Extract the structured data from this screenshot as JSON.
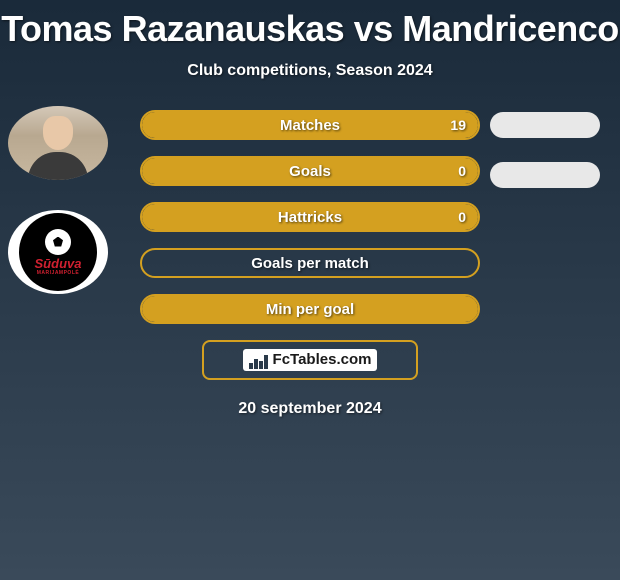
{
  "title": "Tomas Razanauskas vs Mandricenco",
  "subtitle": "Club competitions, Season 2024",
  "logo": {
    "main_text": "Sūduva",
    "sub_text": "MARIJAMPOLĖ",
    "accent_color": "#d02030"
  },
  "stats": [
    {
      "label": "Matches",
      "value": "19",
      "fill_pct": 100
    },
    {
      "label": "Goals",
      "value": "0",
      "fill_pct": 100
    },
    {
      "label": "Hattricks",
      "value": "0",
      "fill_pct": 100
    },
    {
      "label": "Goals per match",
      "value": "",
      "fill_pct": 0
    },
    {
      "label": "Min per goal",
      "value": "",
      "fill_pct": 100
    }
  ],
  "right_pills_count": 2,
  "footer": {
    "brand": "FcTables.com",
    "date": "20 september 2024"
  },
  "colors": {
    "bar_border": "#d4a020",
    "bar_fill": "#d4a020",
    "pill_bg": "#e8e8e8",
    "text": "#ffffff"
  }
}
